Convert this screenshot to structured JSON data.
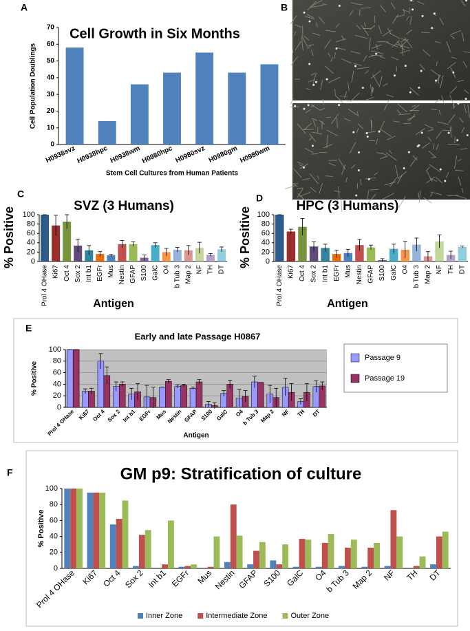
{
  "image_panel": {
    "label": "B"
  },
  "chart_data": [
    {
      "type": "bar",
      "panel": "A",
      "title": "Cell Growth in Six Months",
      "y_label": "Cell Population Doublings",
      "x_label": "Stem Cell Cultures from Human Patients",
      "categories": [
        "H0938svz",
        "H0938hpc",
        "H0938wm",
        "H0980hpc",
        "H0980svz",
        "H0980gm",
        "H0980wm"
      ],
      "values": [
        58,
        14,
        36,
        43,
        55,
        43,
        48
      ],
      "color": "#4f81bd",
      "ylim": [
        0,
        70
      ],
      "yticks": [
        0,
        10,
        20,
        30,
        40,
        50,
        60,
        70
      ],
      "grid": false
    },
    {
      "type": "bar",
      "panel": "C",
      "title": "SVZ (3 Humans)",
      "y_label": "% Positive",
      "x_label": "Antigen",
      "categories": [
        "Prol 4 OHase",
        "Ki67",
        "Oct 4",
        "Sox 2",
        "Int b1",
        "EGFr",
        "Mus",
        "Nestin",
        "GFAP",
        "S100",
        "GalC",
        "O4",
        "b Tub 3",
        "Map 2",
        "NF",
        "TH",
        "DT"
      ],
      "values": [
        100,
        77,
        85,
        34,
        24,
        16,
        13,
        37,
        37,
        8,
        35,
        20,
        25,
        24,
        29,
        14,
        26
      ],
      "errors": [
        0,
        22,
        15,
        14,
        10,
        5,
        2,
        8,
        5,
        6,
        5,
        8,
        5,
        10,
        12,
        3,
        5
      ],
      "colors": [
        "#2e5c8a",
        "#9b2d2a",
        "#77933c",
        "#604a7b",
        "#31859c",
        "#e46c0a",
        "#4f81bd",
        "#c0504d",
        "#9bbb59",
        "#8064a2",
        "#4bacc6",
        "#f79646",
        "#95b3d7",
        "#d99694",
        "#c3d69b",
        "#b3a2c7",
        "#93cddd"
      ],
      "ylim": [
        0,
        100
      ],
      "yticks": [
        0,
        20,
        40,
        60,
        80,
        100
      ],
      "grid": false
    },
    {
      "type": "bar",
      "panel": "D",
      "title": "HPC (3 Humans)",
      "y_label": "% Positive",
      "x_label": "Antigen",
      "categories": [
        "Prol 4 OHase",
        "Ki67",
        "Oct 4",
        "Sox 2",
        "Int b1",
        "EGFr",
        "Mus",
        "Nestin",
        "GFAP",
        "S100",
        "GalC",
        "O4",
        "b Tub 3",
        "Map 2",
        "NF",
        "TH",
        "DT"
      ],
      "values": [
        100,
        64,
        74,
        32,
        29,
        16,
        18,
        35,
        30,
        3,
        27,
        25,
        36,
        11,
        43,
        14,
        31
      ],
      "errors": [
        0,
        5,
        18,
        10,
        8,
        8,
        8,
        12,
        5,
        3,
        10,
        18,
        14,
        10,
        14,
        8,
        2
      ],
      "colors": [
        "#2e5c8a",
        "#9b2d2a",
        "#77933c",
        "#604a7b",
        "#31859c",
        "#e46c0a",
        "#4f81bd",
        "#c0504d",
        "#9bbb59",
        "#8064a2",
        "#4bacc6",
        "#f79646",
        "#95b3d7",
        "#d99694",
        "#c3d69b",
        "#b3a2c7",
        "#93cddd"
      ],
      "ylim": [
        0,
        100
      ],
      "yticks": [
        0,
        20,
        40,
        60,
        80,
        100
      ],
      "grid": false
    },
    {
      "type": "bar",
      "panel": "E",
      "title": "Early and late Passage H0867",
      "y_label": "% Positive",
      "x_label": "Antigen",
      "categories": [
        "Prol 4 OHase",
        "Ki67",
        "Oct 4",
        "Sox 2",
        "Int b1",
        "EGFr",
        "Mus",
        "Nestin",
        "GFAP",
        "S100",
        "GalC",
        "O4",
        "b Tub 3",
        "Map 2",
        "NF",
        "TH",
        "DT"
      ],
      "series": [
        {
          "name": "Passage 9",
          "color": "#9999ff",
          "values": [
            100,
            28,
            80,
            36,
            23,
            18,
            35,
            36,
            33,
            5,
            24,
            16,
            44,
            23,
            35,
            10,
            36
          ],
          "errors": [
            0,
            4,
            13,
            8,
            10,
            20,
            0,
            3,
            2,
            5,
            5,
            15,
            10,
            15,
            15,
            5,
            10
          ]
        },
        {
          "name": "Passage 19",
          "color": "#993366",
          "values": [
            100,
            28,
            55,
            40,
            27,
            17,
            45,
            38,
            44,
            3,
            40,
            19,
            43,
            17,
            26,
            26,
            37
          ],
          "errors": [
            0,
            5,
            15,
            4,
            14,
            18,
            3,
            2,
            4,
            5,
            7,
            10,
            0,
            16,
            15,
            15,
            7
          ]
        }
      ],
      "ylim": [
        0,
        100
      ],
      "yticks": [
        0,
        20,
        40,
        60,
        80,
        100
      ],
      "grid": true,
      "legend": "right"
    },
    {
      "type": "bar",
      "panel": "F",
      "title": "GM p9: Stratification of culture",
      "y_label": "% Positive",
      "categories": [
        "Prol 4 OHase",
        "Ki67",
        "Oct 4",
        "Sox 2",
        "Int b1",
        "EGFr",
        "Mus",
        "Nestin",
        "GFAP",
        "S100",
        "GalC",
        "O4",
        "b Tub 3",
        "Map 2",
        "NF",
        "TH",
        "DT"
      ],
      "series": [
        {
          "name": "Inner Zone",
          "color": "#4f81bd",
          "values": [
            100,
            95,
            55,
            3,
            0,
            2,
            0,
            8,
            5,
            10,
            2,
            2,
            3,
            2,
            3,
            0,
            5
          ]
        },
        {
          "name": "Intermediate Zone",
          "color": "#c0504d",
          "values": [
            100,
            95,
            62,
            42,
            5,
            3,
            2,
            80,
            22,
            5,
            37,
            32,
            26,
            26,
            73,
            3,
            40
          ]
        },
        {
          "name": "Outer Zone",
          "color": "#9bbb59",
          "values": [
            100,
            95,
            85,
            48,
            60,
            5,
            40,
            41,
            33,
            30,
            36,
            43,
            36,
            32,
            40,
            15,
            46
          ]
        }
      ],
      "ylim": [
        0,
        100
      ],
      "yticks": [
        0,
        20,
        40,
        60,
        80,
        100
      ],
      "grid": false,
      "legend": "bottom"
    }
  ]
}
